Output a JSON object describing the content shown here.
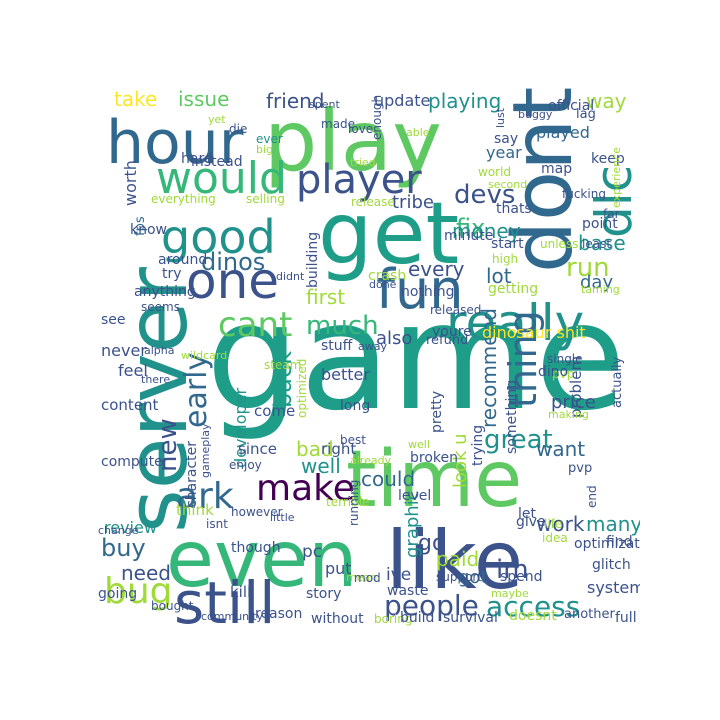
{
  "palette": {
    "background": "#ffffff",
    "colors": [
      "#440154",
      "#3b528b",
      "#21918c",
      "#1e9e89",
      "#5ec962",
      "#a0da39",
      "#fde725",
      "#31688e",
      "#35b779"
    ]
  },
  "words": [
    {
      "text": "game",
      "color": "#1e9e89"
    },
    {
      "text": "play",
      "color": "#5ec962"
    },
    {
      "text": "get",
      "color": "#1e9e89"
    },
    {
      "text": "server",
      "color": "#21918c"
    },
    {
      "text": "time",
      "color": "#5ec962"
    },
    {
      "text": "even",
      "color": "#35b779"
    },
    {
      "text": "like",
      "color": "#3b528b"
    },
    {
      "text": "dont",
      "color": "#31688e"
    },
    {
      "text": "hour",
      "color": "#31688e"
    },
    {
      "text": "still",
      "color": "#3b528b"
    },
    {
      "text": "fun",
      "color": "#31688e"
    },
    {
      "text": "really",
      "color": "#21918c"
    },
    {
      "text": "one",
      "color": "#3b528b"
    },
    {
      "text": "good",
      "color": "#21918c"
    },
    {
      "text": "would",
      "color": "#35b779"
    },
    {
      "text": "dlc",
      "color": "#21918c"
    },
    {
      "text": "player",
      "color": "#3b528b"
    },
    {
      "text": "make",
      "color": "#440154"
    },
    {
      "text": "ark",
      "color": "#31688e"
    },
    {
      "text": "thing",
      "color": "#31688e"
    },
    {
      "text": "bug",
      "color": "#a0da39"
    },
    {
      "text": "people",
      "color": "#3b528b"
    },
    {
      "text": "access",
      "color": "#21918c"
    },
    {
      "text": "cant",
      "color": "#5ec962"
    },
    {
      "text": "much",
      "color": "#35b779"
    },
    {
      "text": "new",
      "color": "#3b528b"
    },
    {
      "text": "early",
      "color": "#31688e"
    },
    {
      "text": "dinos",
      "color": "#31688e"
    },
    {
      "text": "devs",
      "color": "#3b528b"
    },
    {
      "text": "fix",
      "color": "#35b779"
    },
    {
      "text": "money",
      "color": "#21918c"
    },
    {
      "text": "run",
      "color": "#a0da39"
    },
    {
      "text": "buy",
      "color": "#31688e"
    },
    {
      "text": "great",
      "color": "#21918c"
    },
    {
      "text": "im",
      "color": "#3b528b"
    },
    {
      "text": "take",
      "color": "#fde725"
    },
    {
      "text": "issue",
      "color": "#5ec962"
    },
    {
      "text": "friend",
      "color": "#3b528b"
    },
    {
      "text": "update",
      "color": "#3b528b"
    },
    {
      "text": "playing",
      "color": "#21918c"
    },
    {
      "text": "way",
      "color": "#a0da39"
    },
    {
      "text": "base",
      "color": "#21918c"
    },
    {
      "text": "first",
      "color": "#a0da39"
    },
    {
      "text": "every",
      "color": "#3b528b"
    },
    {
      "text": "lot",
      "color": "#31688e"
    },
    {
      "text": "day",
      "color": "#31688e"
    },
    {
      "text": "back",
      "color": "#1e9e89"
    },
    {
      "text": "recommend",
      "color": "#31688e"
    },
    {
      "text": "want",
      "color": "#31688e"
    },
    {
      "text": "bad",
      "color": "#a0da39"
    },
    {
      "text": "well",
      "color": "#21918c"
    },
    {
      "text": "could",
      "color": "#31688e"
    },
    {
      "text": "work",
      "color": "#3b528b"
    },
    {
      "text": "many",
      "color": "#21918c"
    },
    {
      "text": "need",
      "color": "#3b528b"
    },
    {
      "text": "go",
      "color": "#3b528b"
    },
    {
      "text": "paid",
      "color": "#a0da39"
    },
    {
      "text": "got",
      "color": "#31688e"
    },
    {
      "text": "review",
      "color": "#21918c"
    },
    {
      "text": "also",
      "color": "#3b528b"
    },
    {
      "text": "dinosaur shit",
      "color": "#fde725"
    },
    {
      "text": "price",
      "color": "#3b528b"
    },
    {
      "text": "better",
      "color": "#3b528b"
    },
    {
      "text": "look u",
      "color": "#a0da39"
    },
    {
      "text": "graphic",
      "color": "#21918c"
    },
    {
      "text": "worth",
      "color": "#3b528b"
    },
    {
      "text": "fps",
      "color": "#31688e"
    },
    {
      "text": "hard",
      "color": "#3b528b"
    },
    {
      "text": "instead",
      "color": "#3b528b"
    },
    {
      "text": "everything",
      "color": "#a0da39"
    },
    {
      "text": "selling",
      "color": "#a0da39"
    },
    {
      "text": "made",
      "color": "#3b528b"
    },
    {
      "text": "die",
      "color": "#3b528b"
    },
    {
      "text": "ever",
      "color": "#21918c"
    },
    {
      "text": "big",
      "color": "#a0da39"
    },
    {
      "text": "yet",
      "color": "#a0da39"
    },
    {
      "text": "spent",
      "color": "#3b528b"
    },
    {
      "text": "love",
      "color": "#3b528b"
    },
    {
      "text": "enough",
      "color": "#3b528b"
    },
    {
      "text": "able",
      "color": "#a0da39"
    },
    {
      "text": "lust",
      "color": "#3b528b"
    },
    {
      "text": "buggy",
      "color": "#3b528b"
    },
    {
      "text": "official",
      "color": "#3b528b"
    },
    {
      "text": "lag",
      "color": "#3b528b"
    },
    {
      "text": "say",
      "color": "#3b528b"
    },
    {
      "text": "played",
      "color": "#31688e"
    },
    {
      "text": "year",
      "color": "#31688e"
    },
    {
      "text": "keep",
      "color": "#3b528b"
    },
    {
      "text": "map",
      "color": "#3b528b"
    },
    {
      "text": "world",
      "color": "#a0da39"
    },
    {
      "text": "tried",
      "color": "#a0da39"
    },
    {
      "text": "tribe",
      "color": "#3b528b"
    },
    {
      "text": "thats",
      "color": "#3b528b"
    },
    {
      "text": "second",
      "color": "#a0da39"
    },
    {
      "text": "fucking",
      "color": "#3b528b"
    },
    {
      "text": "experience",
      "color": "#a0da39"
    },
    {
      "text": "release",
      "color": "#a0da39"
    },
    {
      "text": "building",
      "color": "#3b528b"
    },
    {
      "text": "minute",
      "color": "#3b528b"
    },
    {
      "text": "start",
      "color": "#3b528b"
    },
    {
      "text": "unless",
      "color": "#a0da39"
    },
    {
      "text": "far",
      "color": "#3b528b"
    },
    {
      "text": "point",
      "color": "#3b528b"
    },
    {
      "text": "least",
      "color": "#3b528b"
    },
    {
      "text": "high",
      "color": "#a0da39"
    },
    {
      "text": "taming",
      "color": "#a0da39"
    },
    {
      "text": "know",
      "color": "#3b528b"
    },
    {
      "text": "around",
      "color": "#3b528b"
    },
    {
      "text": "try",
      "color": "#3b528b"
    },
    {
      "text": "anything",
      "color": "#3b528b"
    },
    {
      "text": "seems",
      "color": "#3b528b"
    },
    {
      "text": "didnt",
      "color": "#3b528b"
    },
    {
      "text": "crash",
      "color": "#a0da39"
    },
    {
      "text": "nothing",
      "color": "#3b528b"
    },
    {
      "text": "done",
      "color": "#3b528b"
    },
    {
      "text": "getting",
      "color": "#a0da39"
    },
    {
      "text": "see",
      "color": "#3b528b"
    },
    {
      "text": "alpha",
      "color": "#3b528b"
    },
    {
      "text": "wildcard",
      "color": "#a0da39"
    },
    {
      "text": "developer",
      "color": "#21918c"
    },
    {
      "text": "stuff",
      "color": "#3b528b"
    },
    {
      "text": "youre",
      "color": "#3b528b"
    },
    {
      "text": "refund",
      "color": "#3b528b"
    },
    {
      "text": "released",
      "color": "#3b528b"
    },
    {
      "text": "single",
      "color": "#3b528b"
    },
    {
      "text": "pvp",
      "color": "#a0da39"
    },
    {
      "text": "away",
      "color": "#3b528b"
    },
    {
      "text": "problem",
      "color": "#3b528b"
    },
    {
      "text": "actually",
      "color": "#3b528b"
    },
    {
      "text": "never",
      "color": "#3b528b"
    },
    {
      "text": "feel",
      "color": "#3b528b"
    },
    {
      "text": "there",
      "color": "#3b528b"
    },
    {
      "text": "steam",
      "color": "#a0da39"
    },
    {
      "text": "content",
      "color": "#3b528b"
    },
    {
      "text": "come",
      "color": "#3b528b"
    },
    {
      "text": "optimized",
      "color": "#a0da39"
    },
    {
      "text": "long",
      "color": "#3b528b"
    },
    {
      "text": "pretty",
      "color": "#3b528b"
    },
    {
      "text": "trying",
      "color": "#3b528b"
    },
    {
      "text": "something",
      "color": "#3b528b"
    },
    {
      "text": "dino",
      "color": "#3b528b"
    },
    {
      "text": "making",
      "color": "#a0da39"
    },
    {
      "text": "best",
      "color": "#3b528b"
    },
    {
      "text": "right",
      "color": "#3b528b"
    },
    {
      "text": "since",
      "color": "#3b528b"
    },
    {
      "text": "computer",
      "color": "#3b528b"
    },
    {
      "text": "character",
      "color": "#3b528b"
    },
    {
      "text": "gameplay",
      "color": "#3b528b"
    },
    {
      "text": "enjoy",
      "color": "#3b528b"
    },
    {
      "text": "already",
      "color": "#a0da39"
    },
    {
      "text": "broken",
      "color": "#3b528b"
    },
    {
      "text": "well",
      "color": "#a0da39"
    },
    {
      "text": "level",
      "color": "#3b528b"
    },
    {
      "text": "pvp",
      "color": "#3b528b"
    },
    {
      "text": "end",
      "color": "#3b528b"
    },
    {
      "text": "optimization",
      "color": "#3b528b"
    },
    {
      "text": "however",
      "color": "#3b528b"
    },
    {
      "text": "terrible",
      "color": "#a0da39"
    },
    {
      "text": "running",
      "color": "#3b528b"
    },
    {
      "text": "give",
      "color": "#3b528b"
    },
    {
      "text": "let",
      "color": "#3b528b"
    },
    {
      "text": "life",
      "color": "#a0da39"
    },
    {
      "text": "find",
      "color": "#3b528b"
    },
    {
      "text": "isnt",
      "color": "#3b528b"
    },
    {
      "text": "little",
      "color": "#3b528b"
    },
    {
      "text": "change",
      "color": "#3b528b"
    },
    {
      "text": "think",
      "color": "#a0da39"
    },
    {
      "text": "though",
      "color": "#3b528b"
    },
    {
      "text": "pc",
      "color": "#3b528b"
    },
    {
      "text": "put",
      "color": "#3b528b"
    },
    {
      "text": "mean",
      "color": "#a0da39"
    },
    {
      "text": "mod",
      "color": "#3b528b"
    },
    {
      "text": "ive",
      "color": "#3b528b"
    },
    {
      "text": "support",
      "color": "#3b528b"
    },
    {
      "text": "spend",
      "color": "#3b528b"
    },
    {
      "text": "idea",
      "color": "#a0da39"
    },
    {
      "text": "glitch",
      "color": "#3b528b"
    },
    {
      "text": "system",
      "color": "#3b528b"
    },
    {
      "text": "maybe",
      "color": "#a0da39"
    },
    {
      "text": "kill",
      "color": "#3b528b"
    },
    {
      "text": "story",
      "color": "#3b528b"
    },
    {
      "text": "waste",
      "color": "#3b528b"
    },
    {
      "text": "going",
      "color": "#3b528b"
    },
    {
      "text": "bought",
      "color": "#3b528b"
    },
    {
      "text": "community",
      "color": "#3b528b"
    },
    {
      "text": "reason",
      "color": "#3b528b"
    },
    {
      "text": "without",
      "color": "#3b528b"
    },
    {
      "text": "boring",
      "color": "#a0da39"
    },
    {
      "text": "build",
      "color": "#3b528b"
    },
    {
      "text": "survival",
      "color": "#3b528b"
    },
    {
      "text": "doesnt",
      "color": "#a0da39"
    },
    {
      "text": "another",
      "color": "#3b528b"
    },
    {
      "text": "full",
      "color": "#3b528b"
    }
  ]
}
